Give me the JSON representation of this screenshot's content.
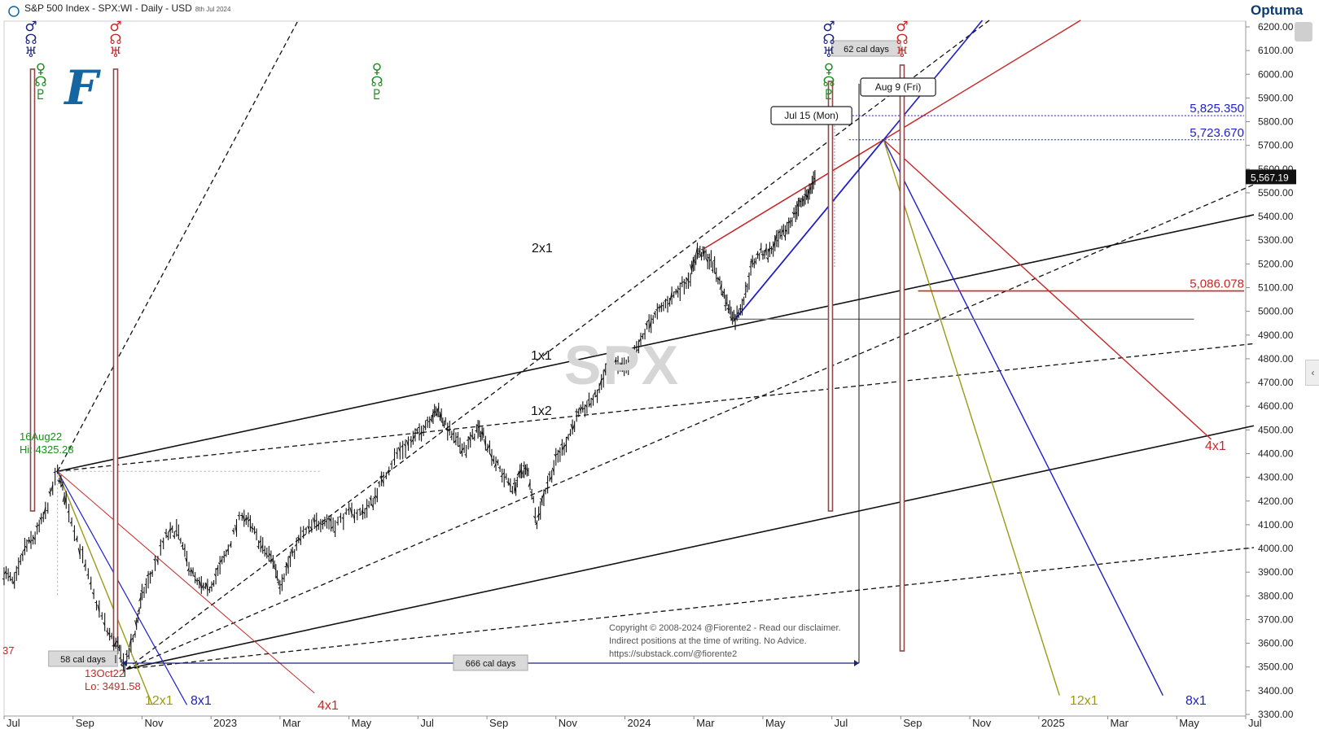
{
  "header": {
    "title": "S&P 500 Index - SPX:WI - Daily - USD",
    "date": "8th Jul 2024",
    "brand": "Optuma",
    "logo_letter": "F",
    "watermark": "SPX"
  },
  "copyright": [
    "Copyright © 2008-2024 @Fiorente2 -  Read our disclaimer.",
    "Indirect positions at the time of writing. No Advice.",
    "https://substack.com/@fiorente2"
  ],
  "colors": {
    "price": "#111111",
    "red": "#c62828",
    "navy": "#1a237e",
    "blue": "#1f1fc8",
    "olive": "#9a9a14",
    "green": "#1e8a1e",
    "maroon": "#8e4646",
    "gray": "#777777"
  },
  "chart_data": {
    "type": "line",
    "title": "S&P 500 Index - SPX:WI - Daily - USD",
    "ylim": [
      3300,
      6200
    ],
    "y_ticks": [
      "6200.00",
      "6100.00",
      "6000.00",
      "5900.00",
      "5800.00",
      "5700.00",
      "5600.00",
      "5500.00",
      "5400.00",
      "5300.00",
      "5200.00",
      "5100.00",
      "5000.00",
      "4900.00",
      "4800.00",
      "4700.00",
      "4600.00",
      "4500.00",
      "4400.00",
      "4300.00",
      "4200.00",
      "4100.00",
      "4000.00",
      "3900.00",
      "3800.00",
      "3700.00",
      "3600.00",
      "3500.00",
      "3400.00",
      "3300.00"
    ],
    "x_labels": [
      {
        "label": "Jul",
        "t": 0
      },
      {
        "label": "Sep",
        "t": 2
      },
      {
        "label": "Nov",
        "t": 4
      },
      {
        "label": "2023",
        "t": 6
      },
      {
        "label": "Mar",
        "t": 8
      },
      {
        "label": "May",
        "t": 10
      },
      {
        "label": "Jul",
        "t": 12
      },
      {
        "label": "Sep",
        "t": 14
      },
      {
        "label": "Nov",
        "t": 16
      },
      {
        "label": "2024",
        "t": 18
      },
      {
        "label": "Mar",
        "t": 20
      },
      {
        "label": "May",
        "t": 22
      },
      {
        "label": "Jul",
        "t": 24
      },
      {
        "label": "Sep",
        "t": 26
      },
      {
        "label": "Nov",
        "t": 28
      },
      {
        "label": "2025",
        "t": 30
      },
      {
        "label": "Mar",
        "t": 32
      },
      {
        "label": "May",
        "t": 34
      },
      {
        "label": "Jul",
        "t": 36
      }
    ],
    "series": [
      {
        "values": [
          [
            0.0,
            3900
          ],
          [
            0.3,
            3850
          ],
          [
            0.6,
            4000
          ],
          [
            0.9,
            4050
          ],
          [
            1.2,
            4150
          ],
          [
            1.55,
            4325
          ],
          [
            1.8,
            4200
          ],
          [
            2.2,
            4000
          ],
          [
            2.6,
            3800
          ],
          [
            3.0,
            3650
          ],
          [
            3.3,
            3580
          ],
          [
            3.5,
            3500
          ],
          [
            3.8,
            3650
          ],
          [
            4.0,
            3800
          ],
          [
            4.3,
            3900
          ],
          [
            4.7,
            4050
          ],
          [
            5.0,
            4080
          ],
          [
            5.3,
            3950
          ],
          [
            5.6,
            3850
          ],
          [
            5.9,
            3820
          ],
          [
            6.2,
            3900
          ],
          [
            6.5,
            4000
          ],
          [
            6.9,
            4150
          ],
          [
            7.2,
            4080
          ],
          [
            7.5,
            4000
          ],
          [
            7.8,
            3950
          ],
          [
            8.0,
            3850
          ],
          [
            8.3,
            3950
          ],
          [
            8.6,
            4050
          ],
          [
            9.0,
            4100
          ],
          [
            9.3,
            4120
          ],
          [
            9.6,
            4100
          ],
          [
            10.0,
            4150
          ],
          [
            10.4,
            4150
          ],
          [
            10.7,
            4200
          ],
          [
            11.0,
            4300
          ],
          [
            11.4,
            4400
          ],
          [
            11.8,
            4450
          ],
          [
            12.1,
            4500
          ],
          [
            12.4,
            4560
          ],
          [
            12.6,
            4580
          ],
          [
            12.8,
            4520
          ],
          [
            13.1,
            4450
          ],
          [
            13.4,
            4420
          ],
          [
            13.7,
            4500
          ],
          [
            13.9,
            4480
          ],
          [
            14.2,
            4380
          ],
          [
            14.5,
            4300
          ],
          [
            14.8,
            4250
          ],
          [
            15.0,
            4330
          ],
          [
            15.2,
            4320
          ],
          [
            15.45,
            4117
          ],
          [
            15.7,
            4250
          ],
          [
            16.0,
            4370
          ],
          [
            16.3,
            4450
          ],
          [
            16.6,
            4550
          ],
          [
            16.9,
            4600
          ],
          [
            17.2,
            4650
          ],
          [
            17.5,
            4780
          ],
          [
            17.8,
            4770
          ],
          [
            18.1,
            4760
          ],
          [
            18.4,
            4850
          ],
          [
            18.7,
            4950
          ],
          [
            19.0,
            5000
          ],
          [
            19.3,
            5050
          ],
          [
            19.6,
            5100
          ],
          [
            19.9,
            5150
          ],
          [
            20.1,
            5250
          ],
          [
            20.3,
            5240
          ],
          [
            20.55,
            5200
          ],
          [
            20.8,
            5100
          ],
          [
            21.0,
            5020
          ],
          [
            21.2,
            4967
          ],
          [
            21.45,
            5050
          ],
          [
            21.7,
            5200
          ],
          [
            21.95,
            5250
          ],
          [
            22.2,
            5250
          ],
          [
            22.45,
            5300
          ],
          [
            22.7,
            5350
          ],
          [
            22.95,
            5420
          ],
          [
            23.15,
            5470
          ],
          [
            23.35,
            5500
          ],
          [
            23.55,
            5567
          ]
        ]
      }
    ],
    "gann_fans": [
      {
        "label": "2x1",
        "color": "black",
        "style": "dashed"
      },
      {
        "label": "1x1",
        "color": "black",
        "style": "solid"
      },
      {
        "label": "1x2",
        "color": "black",
        "style": "dashed"
      },
      {
        "label": "4x1",
        "color": "red"
      },
      {
        "label": "8x1",
        "color": "blue"
      },
      {
        "label": "12x1",
        "color": "olive"
      }
    ],
    "levels": [
      {
        "value": 5825.35,
        "label": "5,825.350",
        "color": "blue"
      },
      {
        "value": 5723.67,
        "label": "5,723.670",
        "color": "blue"
      },
      {
        "value": 5086.078,
        "label": "5,086.078",
        "color": "red"
      }
    ],
    "last_price": {
      "value": 5567.19,
      "label": "5,567.19"
    },
    "annotations": {
      "high": {
        "date_label": "16Aug22",
        "value_label": "Hi: 4325.28"
      },
      "low": {
        "date_label": "13Oct22",
        "value_label": "Lo: 3491.58"
      },
      "jul15": "Jul 15 (Mon)",
      "aug9": "Aug 9 (Fri)",
      "cal_58": "58 cal days",
      "cal_666": "666 cal days",
      "cal_62": "62 cal days",
      "left_edge_digits": "37"
    },
    "fan_labels": {
      "bottom_12x1": "12x1",
      "bottom_8x1": "8x1",
      "bottom_4x1": "4x1",
      "right_12x1": "12x1",
      "right_8x1": "8x1",
      "right_4x1": "4x1",
      "x2x1": "2x1",
      "x1x1": "1x1",
      "x1x2": "1x2"
    },
    "astro_symbols": {
      "mars": "♂",
      "mercury": "☿",
      "venus": "♀",
      "uranus": "♅",
      "pluto": "♇",
      "node": "☊",
      "neptune": "♆"
    }
  }
}
